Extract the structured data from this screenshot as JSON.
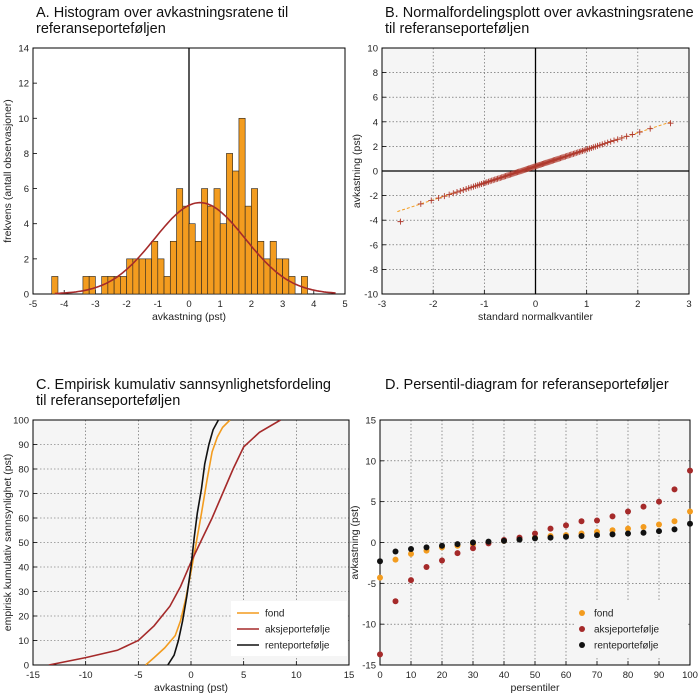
{
  "chart_data": [
    {
      "panel": "A",
      "type": "bar",
      "title": [
        "A. Histogram over avkastningsratene til",
        "referanseporteføljen"
      ],
      "xlabel": "avkastning (pst)",
      "ylabel": "frekvens (antall observasjoner)",
      "xlim": [
        -5,
        5
      ],
      "ylim": [
        0,
        14
      ],
      "xticks": [
        -5,
        -4,
        -3,
        -2,
        -1,
        0,
        1,
        2,
        3,
        4,
        5
      ],
      "yticks": [
        0,
        2,
        4,
        6,
        8,
        10,
        12,
        14
      ],
      "bin_width": 0.2,
      "bins": [
        [
          -4.3,
          1
        ],
        [
          -3.3,
          1
        ],
        [
          -3.1,
          1
        ],
        [
          -2.7,
          1
        ],
        [
          -2.5,
          1
        ],
        [
          -2.3,
          1
        ],
        [
          -2.1,
          1
        ],
        [
          -1.9,
          2
        ],
        [
          -1.7,
          2
        ],
        [
          -1.5,
          2
        ],
        [
          -1.3,
          2
        ],
        [
          -1.1,
          3
        ],
        [
          -0.9,
          2
        ],
        [
          -0.7,
          1
        ],
        [
          -0.5,
          3
        ],
        [
          -0.3,
          6
        ],
        [
          -0.1,
          5
        ],
        [
          0.1,
          4
        ],
        [
          0.3,
          3
        ],
        [
          0.5,
          6
        ],
        [
          0.7,
          5
        ],
        [
          0.9,
          6
        ],
        [
          1.1,
          4
        ],
        [
          1.3,
          8
        ],
        [
          1.5,
          7
        ],
        [
          1.7,
          10
        ],
        [
          1.9,
          5
        ],
        [
          2.1,
          6
        ],
        [
          2.3,
          3
        ],
        [
          2.5,
          2
        ],
        [
          2.7,
          3
        ],
        [
          2.9,
          2
        ],
        [
          3.1,
          2
        ],
        [
          3.3,
          1
        ],
        [
          3.7,
          1
        ]
      ],
      "normal_curve": {
        "mean": 0.35,
        "sd": 1.45,
        "peak": 5.2,
        "color": "#a52a2a"
      },
      "bar_color": "#f39c1f",
      "grid": false
    },
    {
      "panel": "B",
      "type": "scatter",
      "title": [
        "B. Normalfordelingsplott over avkastningsratene",
        "til referanseporteføljen"
      ],
      "xlabel": "standard normalkvantiler",
      "ylabel": "avkastning (pst)",
      "xlim": [
        -3,
        3
      ],
      "ylim": [
        -10,
        10
      ],
      "xticks": [
        -3,
        -2,
        -1,
        0,
        1,
        2,
        3
      ],
      "yticks": [
        -10,
        -8,
        -6,
        -4,
        -2,
        0,
        2,
        4,
        6,
        8,
        10
      ],
      "marker": "+",
      "marker_color": "#b03a2e",
      "fit_line": {
        "x": [
          -2.7,
          2.65
        ],
        "y": [
          -3.3,
          4.0
        ],
        "color": "#f39c1f",
        "style": "dashed"
      },
      "n_points": 120,
      "grid": true
    },
    {
      "panel": "C",
      "type": "line",
      "title": [
        "C. Empirisk kumulativ sannsynlighetsfordeling",
        "til referanseporteføljen"
      ],
      "xlabel": "avkastning (pst)",
      "ylabel": "empirisk kumulativ sannsynlighet (pst)",
      "xlim": [
        -15,
        15
      ],
      "ylim": [
        0,
        100
      ],
      "xticks": [
        -15,
        -10,
        -5,
        0,
        5,
        10,
        15
      ],
      "yticks": [
        0,
        10,
        20,
        30,
        40,
        50,
        60,
        70,
        80,
        90,
        100
      ],
      "legend": "bottom-right",
      "series": [
        {
          "name": "fond",
          "color": "#f39c1f",
          "x": [
            -4.3,
            -3.5,
            -2.5,
            -1.5,
            -1.0,
            -0.5,
            0.0,
            0.5,
            1.0,
            1.5,
            2.0,
            2.5,
            3.0,
            3.7
          ],
          "y": [
            0,
            3,
            7,
            12,
            18,
            27,
            38,
            50,
            62,
            75,
            87,
            93,
            97,
            100
          ]
        },
        {
          "name": "aksjeportefølje",
          "color": "#a52a2a",
          "x": [
            -13.5,
            -10,
            -7,
            -5,
            -3.5,
            -2,
            -1,
            0,
            1,
            2,
            3,
            4,
            5,
            6.5,
            8.5
          ],
          "y": [
            0,
            3,
            6,
            10,
            16,
            24,
            32,
            42,
            51,
            60,
            70,
            80,
            89,
            95,
            100
          ]
        },
        {
          "name": "renteportefølje",
          "color": "#111111",
          "x": [
            -2.2,
            -1.6,
            -1.2,
            -0.8,
            -0.4,
            0.0,
            0.3,
            0.6,
            1.0,
            1.3,
            1.7,
            2.1,
            2.6
          ],
          "y": [
            0,
            4,
            10,
            18,
            28,
            40,
            52,
            62,
            72,
            82,
            90,
            96,
            100
          ]
        }
      ],
      "grid": true
    },
    {
      "panel": "D",
      "type": "scatter",
      "title": [
        "D.  Persentil-diagram for referanseporteføljer"
      ],
      "xlabel": "persentiler",
      "ylabel": "avkastning (pst)",
      "xlim": [
        0,
        100
      ],
      "ylim": [
        -15,
        15
      ],
      "xticks": [
        0,
        10,
        20,
        30,
        40,
        50,
        60,
        70,
        80,
        90,
        100
      ],
      "yticks": [
        -15,
        -10,
        -5,
        0,
        5,
        10,
        15
      ],
      "legend": "bottom-right",
      "x": [
        0,
        5,
        10,
        15,
        20,
        25,
        30,
        35,
        40,
        45,
        50,
        55,
        60,
        65,
        70,
        75,
        80,
        85,
        90,
        95,
        100
      ],
      "series": [
        {
          "name": "fond",
          "color": "#f39c1f",
          "values": [
            -4.3,
            -2.1,
            -1.4,
            -1.0,
            -0.6,
            -0.4,
            -0.2,
            0.0,
            0.2,
            0.4,
            0.6,
            0.8,
            0.9,
            1.1,
            1.3,
            1.5,
            1.7,
            1.9,
            2.2,
            2.6,
            3.8
          ]
        },
        {
          "name": "aksjeportefølje",
          "color": "#a52a2a",
          "values": [
            -13.7,
            -7.2,
            -4.6,
            -3.0,
            -2.2,
            -1.3,
            -0.7,
            -0.1,
            0.3,
            0.6,
            1.1,
            1.7,
            2.1,
            2.6,
            2.7,
            3.2,
            3.8,
            4.4,
            5.0,
            6.5,
            8.8
          ]
        },
        {
          "name": "renteportefølje",
          "color": "#111111",
          "values": [
            -2.3,
            -1.1,
            -0.8,
            -0.6,
            -0.4,
            -0.2,
            0.0,
            0.1,
            0.2,
            0.35,
            0.5,
            0.6,
            0.7,
            0.8,
            0.9,
            1.0,
            1.1,
            1.2,
            1.4,
            1.6,
            2.3
          ]
        }
      ],
      "grid": true
    }
  ]
}
